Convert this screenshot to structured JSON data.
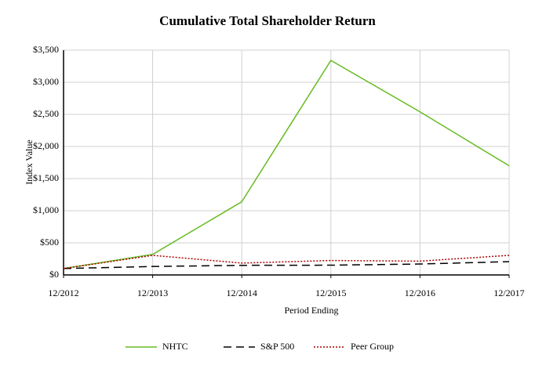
{
  "chart_data": {
    "type": "line",
    "title": "Cumulative Total Shareholder Return",
    "x_label": "Period Ending",
    "y_label": "Index Value",
    "categories": [
      "12/2012",
      "12/2013",
      "12/2014",
      "12/2015",
      "12/2016",
      "12/2017"
    ],
    "series": [
      {
        "name": "NHTC",
        "color": "#66bb22",
        "dash": "solid",
        "values": [
          100,
          320,
          1140,
          3340,
          2540,
          1700
        ]
      },
      {
        "name": "S&P 500",
        "color": "#000000",
        "dash": "dashed",
        "values": [
          100,
          132,
          150,
          152,
          170,
          207
        ]
      },
      {
        "name": "Peer Group",
        "color": "#aa0000",
        "dash": "dotted",
        "values": [
          100,
          305,
          185,
          225,
          215,
          305
        ]
      }
    ],
    "ylim": [
      0,
      3500
    ],
    "yticks": [
      {
        "value": 0,
        "label": "$0"
      },
      {
        "value": 500,
        "label": "$500"
      },
      {
        "value": 1000,
        "label": "$1,000"
      },
      {
        "value": 1500,
        "label": "$1,500"
      },
      {
        "value": 2000,
        "label": "$2,000"
      },
      {
        "value": 2500,
        "label": "$2,500"
      },
      {
        "value": 3000,
        "label": "$3,000"
      },
      {
        "value": 3500,
        "label": "$3,500"
      }
    ],
    "grid": true,
    "legend": "bottom"
  }
}
